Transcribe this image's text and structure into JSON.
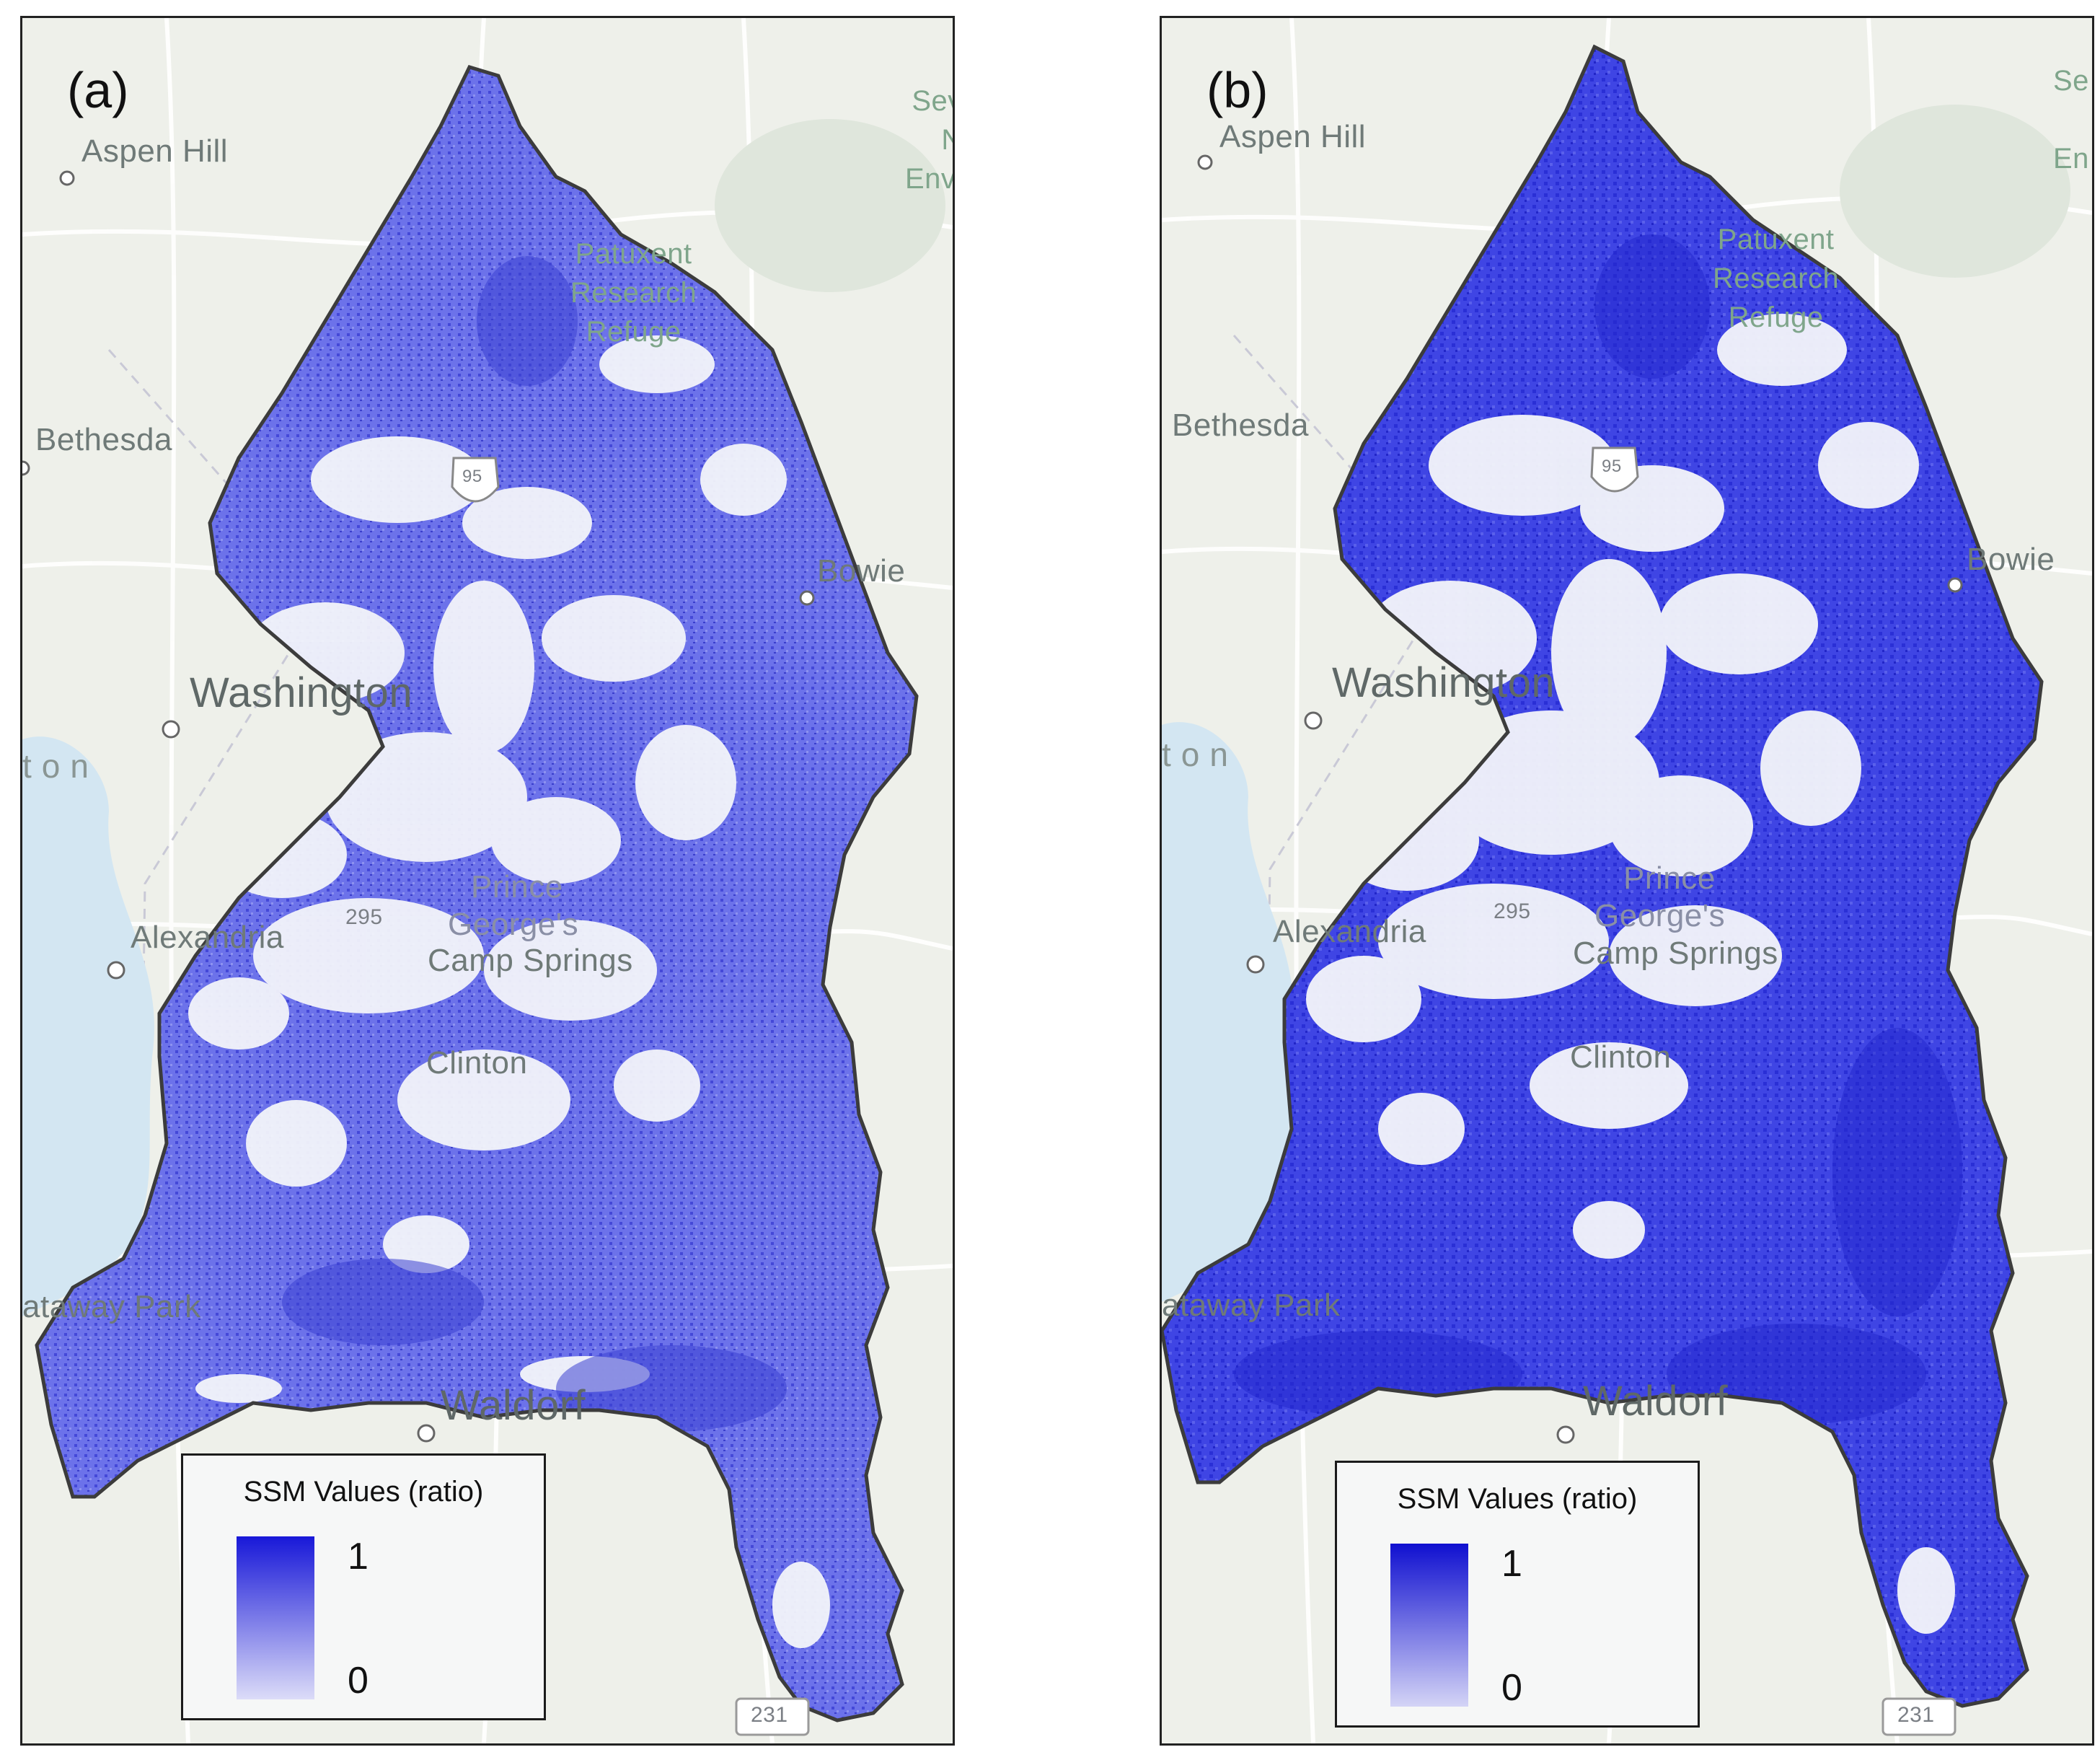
{
  "panels": [
    {
      "id": "a",
      "tag": "(a)",
      "legend": {
        "title": "SSM Values (ratio)",
        "max_label": "1",
        "min_label": "0",
        "ramp_high": "#1818d8",
        "ramp_low": "#dcdcf8"
      },
      "place_labels": {
        "aspen_hill": "Aspen Hill",
        "bethesda": "Bethesda",
        "washington": "Washington",
        "ton": "ton",
        "alexandria": "Alexandria",
        "camp_springs": "Camp Springs",
        "clinton": "Clinton",
        "bowie": "Bowie",
        "waldorf": "Waldorf",
        "piscataway": "ataway Park",
        "patuxent_1": "Patuxent",
        "patuxent_2": "Research",
        "patuxent_3": "Refuge",
        "prince": "Prince",
        "georges": "George's",
        "sev_1": "Sev",
        "sev_2": "N",
        "sev_3": "Envi",
        "route_295": "295",
        "route_95": "95",
        "route_231": "231"
      }
    },
    {
      "id": "b",
      "tag": "(b)",
      "legend": {
        "title": "SSM Values (ratio)",
        "max_label": "1",
        "min_label": "0",
        "ramp_high": "#1010d0",
        "ramp_low": "#d4d4f6"
      },
      "place_labels": {
        "aspen_hill": "Aspen Hill",
        "bethesda": "Bethesda",
        "washington": "Washington",
        "ton": "ton",
        "alexandria": "Alexandria",
        "camp_springs": "Camp Springs",
        "clinton": "Clinton",
        "bowie": "Bowie",
        "waldorf": "Waldorf",
        "piscataway": "ataway Park",
        "patuxent_1": "Patuxent",
        "patuxent_2": "Research",
        "patuxent_3": "Refuge",
        "prince": "Prince",
        "georges": "George's",
        "sev_1": "Se",
        "sev_2": "",
        "sev_3": "En",
        "route_295": "295",
        "route_95": "95",
        "route_231": "231"
      }
    }
  ],
  "colors": {
    "basemap": "#eef0ea",
    "water": "#d3e6f2",
    "ssm_fill_a": "#6a70e8",
    "ssm_fill_b": "#3a40e6",
    "county_outline": "#3c3c3c"
  }
}
